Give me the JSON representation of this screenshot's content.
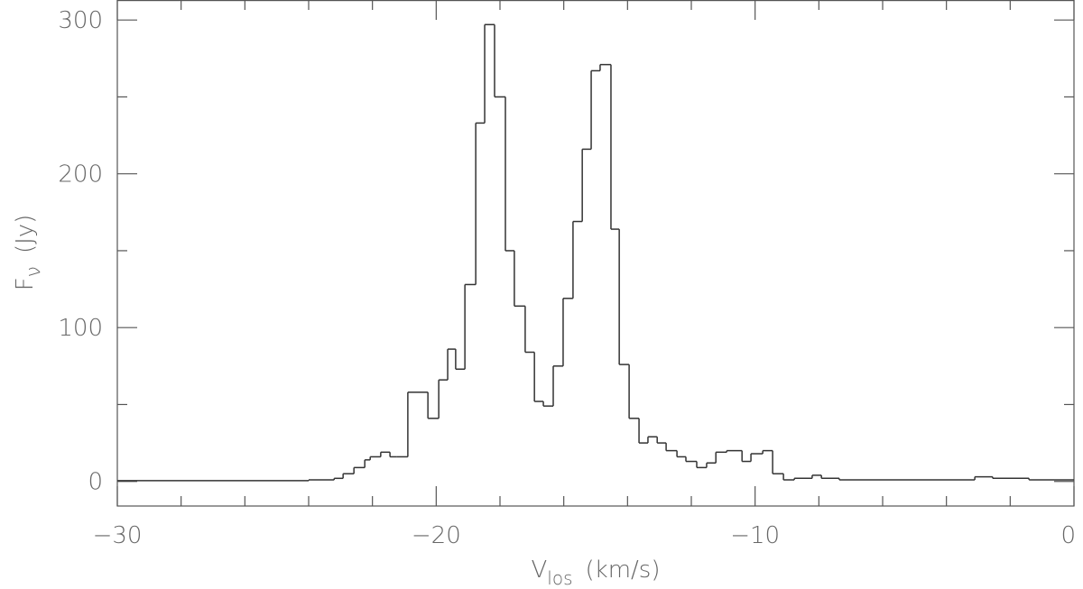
{
  "chart_data": {
    "type": "histogram",
    "xlabel": {
      "main": "V",
      "sub": "los",
      "unit": "(km/s)"
    },
    "ylabel": {
      "main": "F",
      "sub": "ν",
      "unit": "(Jy)"
    },
    "bins": [
      -30,
      -24,
      -23.2,
      -22.92,
      -22.58,
      -22.24,
      -22.07,
      -21.74,
      -21.45,
      -21.23,
      -20.89,
      -20.26,
      -19.92,
      -19.64,
      -19.39,
      -19.1,
      -18.76,
      -18.48,
      -18.17,
      -17.83,
      -17.55,
      -17.21,
      -16.92,
      -16.64,
      -16.33,
      -16.02,
      -15.71,
      -15.42,
      -15.14,
      -14.86,
      -14.52,
      -14.26,
      -13.95,
      -13.64,
      -13.36,
      -13.07,
      -12.79,
      -12.45,
      -12.17,
      -11.83,
      -11.52,
      -11.23,
      -10.89,
      -10.41,
      -10.13,
      -9.76,
      -9.45,
      -9.11,
      -8.77,
      -8.21,
      -7.92,
      -7.36,
      -3.11,
      -2.55,
      -1.41,
      0
    ],
    "values": [
      0.5,
      1,
      2,
      5,
      9,
      14,
      16,
      19,
      16,
      16,
      58,
      41,
      66,
      86,
      73,
      128,
      233,
      297,
      250,
      150,
      114,
      84,
      52,
      49,
      75,
      119,
      169,
      216,
      267,
      271,
      164,
      76,
      41,
      25,
      29,
      25,
      20,
      16,
      13,
      9,
      12,
      19,
      20,
      13,
      18,
      20,
      5,
      1,
      2,
      4,
      2,
      1,
      3,
      2,
      1
    ],
    "color": "#333333",
    "xlim": [
      -30,
      0
    ],
    "xticks": [
      {
        "value": -30,
        "label": "−30"
      },
      {
        "value": -20,
        "label": "−20"
      },
      {
        "value": -10,
        "label": "−10"
      },
      0
    ],
    "xminorticks": [
      -28,
      -26,
      -24,
      -22,
      -18,
      -16,
      -14,
      -12,
      -8,
      -6,
      -4,
      -2
    ],
    "ylim": [
      -16,
      313
    ],
    "yticks": [
      0,
      100,
      200,
      300
    ],
    "yminorticks": [
      50,
      150,
      250
    ]
  }
}
